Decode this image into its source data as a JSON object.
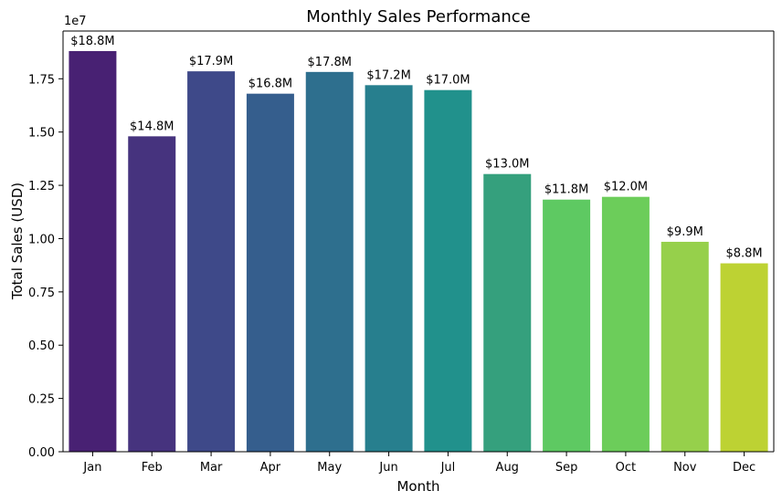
{
  "chart_data": {
    "type": "bar",
    "title": "Monthly Sales Performance",
    "xlabel": "Month",
    "ylabel": "Total Sales (USD)",
    "y_offset_label": "1e7",
    "categories": [
      "Jan",
      "Feb",
      "Mar",
      "Apr",
      "May",
      "Jun",
      "Jul",
      "Aug",
      "Sep",
      "Oct",
      "Nov",
      "Dec"
    ],
    "values": [
      18800000,
      14800000,
      17850000,
      16800000,
      17820000,
      17200000,
      16970000,
      13030000,
      11830000,
      11960000,
      9850000,
      8840000
    ],
    "data_labels": [
      "$18.8M",
      "$14.8M",
      "$17.9M",
      "$16.8M",
      "$17.8M",
      "$17.2M",
      "$17.0M",
      "$13.0M",
      "$11.8M",
      "$12.0M",
      "$9.9M",
      "$8.8M"
    ],
    "bar_colors": [
      "#482173",
      "#46337e",
      "#3e4989",
      "#355e8d",
      "#2e6f8e",
      "#277f8e",
      "#21918c",
      "#35a07d",
      "#5ec962",
      "#6ccd5a",
      "#96d04b",
      "#bdd233"
    ],
    "yticks": [
      0,
      2500000,
      5000000,
      7500000,
      10000000,
      12500000,
      15000000,
      17500000
    ],
    "ytick_labels": [
      "0.00",
      "0.25",
      "0.50",
      "0.75",
      "1.00",
      "1.25",
      "1.50",
      "1.75"
    ],
    "ylim": [
      0,
      19740000
    ],
    "grid": false,
    "legend": "none"
  }
}
